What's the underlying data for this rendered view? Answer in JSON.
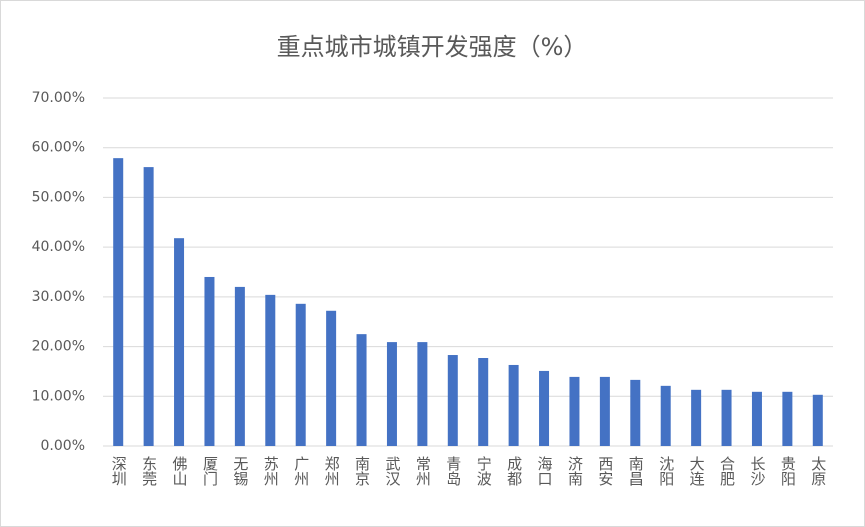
{
  "chart_data": {
    "type": "bar",
    "title": "重点城市城镇开发强度（%）",
    "categories": [
      "深圳",
      "东莞",
      "佛山",
      "厦门",
      "无锡",
      "苏州",
      "广州",
      "郑州",
      "南京",
      "武汉",
      "常州",
      "青岛",
      "宁波",
      "成都",
      "海口",
      "济南",
      "西安",
      "南昌",
      "沈阳",
      "大连",
      "合肥",
      "长沙",
      "贵阳",
      "太原"
    ],
    "values": [
      57.9,
      56.1,
      41.8,
      34.0,
      32.0,
      30.4,
      28.6,
      27.2,
      22.5,
      20.9,
      20.9,
      18.3,
      17.7,
      16.3,
      15.1,
      13.9,
      13.9,
      13.3,
      12.1,
      11.3,
      11.3,
      10.9,
      10.9,
      10.3
    ],
    "color": "#4472c4",
    "ylim": [
      0,
      70
    ],
    "yticks": [
      {
        "value": 0,
        "label": "0.00%"
      },
      {
        "value": 10,
        "label": "10.00%"
      },
      {
        "value": 20,
        "label": "20.00%"
      },
      {
        "value": 30,
        "label": "30.00%"
      },
      {
        "value": 40,
        "label": "40.00%"
      },
      {
        "value": 50,
        "label": "50.00%"
      },
      {
        "value": 60,
        "label": "60.00%"
      },
      {
        "value": 70,
        "label": "70.00%"
      }
    ],
    "grid": true
  }
}
